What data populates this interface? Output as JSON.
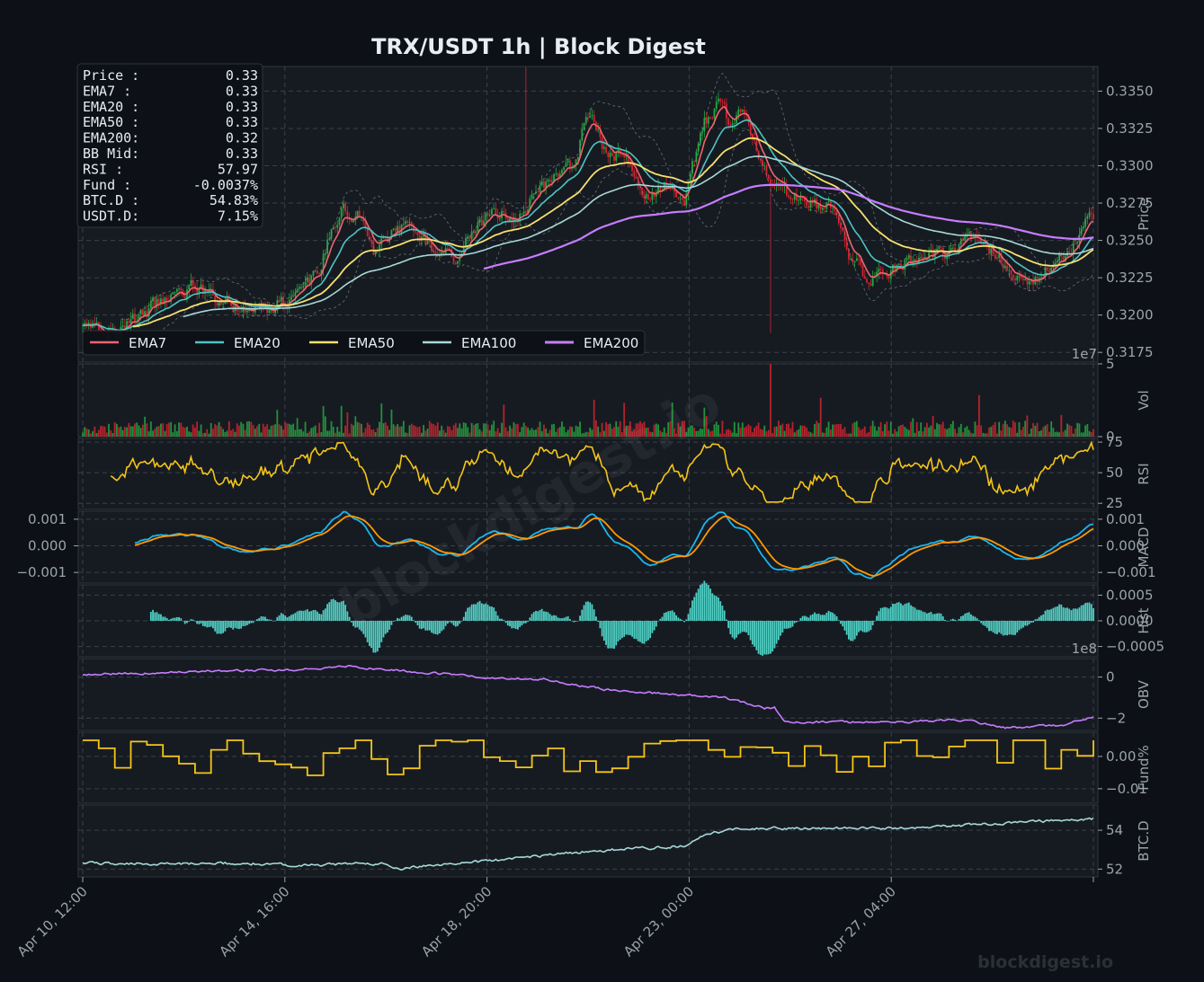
{
  "title": "TRX/USDT  1h  |  Block Digest",
  "watermark": "blockdigest.io",
  "footer_watermark": "blockdigest.io",
  "colors": {
    "background": "#0d1117",
    "panel": "#161b22",
    "grid": "#30363d",
    "up": "#26a641",
    "down": "#d1242f",
    "ema7": "#f0646e",
    "ema20": "#4fc3c3",
    "ema50": "#f7e06e",
    "ema100": "#a8d8d8",
    "ema200": "#c77dff",
    "rsi": "#f5c518",
    "macd": "#19b6f0",
    "signal": "#ff9800",
    "hist": "#4fd1c5",
    "obv": "#c77dff",
    "fund": "#f5c518",
    "btcd": "#a8d8d8"
  },
  "info_box": [
    {
      "label": "Price :",
      "value": "0.33"
    },
    {
      "label": "EMA7  :",
      "value": "0.33"
    },
    {
      "label": "EMA20 :",
      "value": "0.33"
    },
    {
      "label": "EMA50 :",
      "value": "0.33"
    },
    {
      "label": "EMA200:",
      "value": "0.32"
    },
    {
      "label": "BB Mid:",
      "value": "0.33"
    },
    {
      "label": "RSI   :",
      "value": "57.97"
    },
    {
      "label": "Fund  :",
      "value": "-0.0037%"
    },
    {
      "label": "BTC.D :",
      "value": "54.83%"
    },
    {
      "label": "USDT.D:",
      "value": "7.15%"
    }
  ],
  "legend": [
    "EMA7",
    "EMA20",
    "EMA50",
    "EMA100",
    "EMA200"
  ],
  "chart_data": {
    "type": "line",
    "x_ticks": [
      "Apr 10, 12:00",
      "Apr 14, 16:00",
      "Apr 18, 20:00",
      "Apr 23, 00:00",
      "Apr 27, 04:00"
    ],
    "x_range_hours": [
      0,
      504
    ],
    "panels": [
      {
        "key": "price",
        "ylabel": "Price",
        "ylim": [
          0.31685,
          0.33665
        ],
        "ticks": [
          0.3175,
          0.32,
          0.3225,
          0.325,
          0.3275,
          0.33,
          0.3325,
          0.335
        ],
        "tick_labels": [
          "0.3175",
          "0.3200",
          "0.3225",
          "0.3250",
          "0.3275",
          "0.3300",
          "0.3325",
          "0.3350"
        ],
        "price_anchors": [
          [
            0,
            0.3193
          ],
          [
            12,
            0.3188
          ],
          [
            25,
            0.3195
          ],
          [
            40,
            0.321
          ],
          [
            55,
            0.322
          ],
          [
            70,
            0.321
          ],
          [
            85,
            0.32
          ],
          [
            100,
            0.321
          ],
          [
            110,
            0.3213
          ],
          [
            118,
            0.323
          ],
          [
            122,
            0.325
          ],
          [
            130,
            0.327
          ],
          [
            138,
            0.3265
          ],
          [
            145,
            0.324
          ],
          [
            155,
            0.3255
          ],
          [
            165,
            0.326
          ],
          [
            175,
            0.3245
          ],
          [
            185,
            0.324
          ],
          [
            195,
            0.3255
          ],
          [
            205,
            0.327
          ],
          [
            215,
            0.3265
          ],
          [
            225,
            0.328
          ],
          [
            235,
            0.329
          ],
          [
            245,
            0.33
          ],
          [
            252,
            0.3335
          ],
          [
            262,
            0.3305
          ],
          [
            270,
            0.331
          ],
          [
            280,
            0.328
          ],
          [
            290,
            0.3285
          ],
          [
            300,
            0.328
          ],
          [
            310,
            0.333
          ],
          [
            318,
            0.334
          ],
          [
            322,
            0.333
          ],
          [
            330,
            0.3335
          ],
          [
            338,
            0.33
          ],
          [
            345,
            0.3285
          ],
          [
            355,
            0.328
          ],
          [
            365,
            0.3275
          ],
          [
            375,
            0.327
          ],
          [
            382,
            0.324
          ],
          [
            390,
            0.3225
          ],
          [
            400,
            0.323
          ],
          [
            410,
            0.3238
          ],
          [
            420,
            0.3235
          ],
          [
            430,
            0.324
          ],
          [
            440,
            0.3255
          ],
          [
            450,
            0.3245
          ],
          [
            460,
            0.3235
          ],
          [
            470,
            0.3218
          ],
          [
            480,
            0.323
          ],
          [
            490,
            0.324
          ],
          [
            500,
            0.3262
          ],
          [
            504,
            0.3262
          ]
        ],
        "ema200_start_hour": 200
      },
      {
        "key": "vol",
        "ylabel": "Vol",
        "ylim": [
          0,
          5
        ],
        "ticks": [
          0,
          5
        ],
        "tick_labels": [
          "0",
          "5"
        ],
        "exponent": "1e7"
      },
      {
        "key": "rsi",
        "ylabel": "RSI",
        "ylim": [
          20,
          78
        ],
        "ticks": [
          25,
          50,
          75
        ],
        "tick_labels": [
          "25",
          "50",
          "75"
        ]
      },
      {
        "key": "macd",
        "ylabel": "MACD",
        "ylim": [
          -0.0014,
          0.0013
        ],
        "ticks": [
          -0.001,
          0,
          0.001
        ],
        "tick_labels": [
          "−0.001",
          "0.000",
          "0.001"
        ],
        "left_tick_labels": [
          "−0.001",
          "0.000",
          "0.001"
        ]
      },
      {
        "key": "hist",
        "ylabel": "Hist",
        "ylim": [
          -0.0007,
          0.0007
        ],
        "ticks": [
          -0.0005,
          0,
          0.0005
        ],
        "tick_labels": [
          "−0.0005",
          "0.0000",
          "0.0005"
        ]
      },
      {
        "key": "obv",
        "ylabel": "OBV",
        "ylim": [
          -2.6,
          0.9
        ],
        "ticks": [
          -2,
          0
        ],
        "tick_labels": [
          "−2",
          "0"
        ],
        "exponent": "1e8"
      },
      {
        "key": "fund",
        "ylabel": "Fund%",
        "ylim": [
          -0.0145,
          0.0075
        ],
        "ticks": [
          -0.01,
          0
        ],
        "tick_labels": [
          "−0.01",
          "0.00"
        ]
      },
      {
        "key": "btcd",
        "ylabel": "BTC.D",
        "ylim": [
          51.6,
          55.3
        ],
        "ticks": [
          52,
          54
        ],
        "tick_labels": [
          "52",
          "54"
        ]
      }
    ],
    "grid": true,
    "legend_position": "lower-left of price panel",
    "info_box_position": "top-left of price panel"
  }
}
